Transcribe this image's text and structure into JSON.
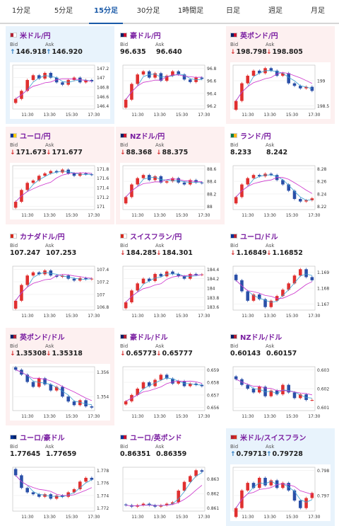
{
  "tabs": [
    "1分足",
    "5分足",
    "15分足",
    "30分足",
    "1時間足",
    "日足",
    "週足",
    "月足"
  ],
  "active_tab": 2,
  "bid_label": "Bid",
  "ask_label": "Ask",
  "x_ticks": [
    "11:30",
    "13:30",
    "15:30",
    "17:30"
  ],
  "colors": {
    "up": "#e03030",
    "down": "#2a4fa8",
    "ma_fast": "#3aa0d0",
    "ma_slow": "#cc33cc",
    "card_down": "#fdf0f0",
    "card_up": "#e8f3fc"
  },
  "cards": [
    {
      "name": "米ドル/円",
      "flag": "us-flag-icon",
      "state": "up",
      "dir": "up",
      "bid": "146.918",
      "ask": "146.920",
      "yticks": [
        "147.2",
        "147",
        "146.8",
        "146.6",
        "146.4"
      ],
      "series": [
        146.55,
        146.72,
        146.95,
        147.05,
        146.98,
        147.1,
        147.0,
        146.9,
        146.85,
        146.95,
        147.0,
        146.9,
        146.95,
        146.92
      ]
    },
    {
      "name": "豪ドル/円",
      "flag": "au-flag-icon",
      "state": "flat",
      "dir": "none",
      "bid": "96.635",
      "ask": "96.640",
      "yticks": [
        "96.8",
        "96.6",
        "96.4",
        "96.2"
      ],
      "series": [
        96.3,
        96.55,
        96.7,
        96.75,
        96.65,
        96.72,
        96.6,
        96.68,
        96.75,
        96.7,
        96.62,
        96.58,
        96.65,
        96.63
      ]
    },
    {
      "name": "英ポンド/円",
      "flag": "gb-flag-icon",
      "state": "down",
      "dir": "dn",
      "bid": "198.798",
      "ask": "198.805",
      "yticks": [
        "199",
        "198.5"
      ],
      "series": [
        198.6,
        198.95,
        199.1,
        199.2,
        199.15,
        199.25,
        199.2,
        199.1,
        199.15,
        198.95,
        198.9,
        198.85,
        198.88,
        198.8
      ]
    },
    {
      "name": "ユーロ/円",
      "flag": "eu-flag-icon",
      "state": "down",
      "dir": "dn",
      "bid": "171.673",
      "ask": "171.677",
      "yticks": [
        "171.8",
        "171.6",
        "171.4",
        "171.2",
        "171"
      ],
      "series": [
        171.1,
        171.35,
        171.5,
        171.55,
        171.65,
        171.7,
        171.75,
        171.72,
        171.78,
        171.7,
        171.65,
        171.7,
        171.68,
        171.67
      ]
    },
    {
      "name": "NZドル/円",
      "flag": "nz-flag-icon",
      "state": "down",
      "dir": "dn",
      "bid": "88.368",
      "ask": "88.375",
      "yticks": [
        "88.6",
        "88.4",
        "88.2",
        "88"
      ],
      "series": [
        88.15,
        88.35,
        88.45,
        88.5,
        88.42,
        88.48,
        88.38,
        88.4,
        88.45,
        88.38,
        88.35,
        88.42,
        88.38,
        88.37
      ]
    },
    {
      "name": "ランド/円",
      "flag": "za-flag-icon",
      "state": "flat",
      "dir": "none",
      "bid": "8.233",
      "ask": "8.242",
      "yticks": [
        "8.28",
        "8.26",
        "8.24",
        "8.22"
      ],
      "series": [
        8.235,
        8.255,
        8.265,
        8.27,
        8.268,
        8.272,
        8.27,
        8.262,
        8.255,
        8.245,
        8.232,
        8.228,
        8.23,
        8.233
      ]
    },
    {
      "name": "カナダドル/円",
      "flag": "ca-flag-icon",
      "state": "flat",
      "dir": "none",
      "bid": "107.247",
      "ask": "107.253",
      "yticks": [
        "107.4",
        "107.2",
        "107",
        "106.8"
      ],
      "series": [
        106.9,
        107.15,
        107.3,
        107.35,
        107.32,
        107.38,
        107.3,
        107.28,
        107.3,
        107.25,
        107.22,
        107.26,
        107.24,
        107.25
      ]
    },
    {
      "name": "スイスフラン/円",
      "flag": "ch-flag-icon",
      "state": "flat",
      "dir": "dn",
      "bid": "184.285",
      "ask": "184.301",
      "yticks": [
        "184.4",
        "184.2",
        "184",
        "183.8",
        "183.6"
      ],
      "series": [
        183.7,
        183.95,
        184.1,
        184.2,
        184.15,
        184.3,
        184.25,
        184.35,
        184.3,
        184.25,
        184.2,
        184.3,
        184.28,
        184.29
      ]
    },
    {
      "name": "ユーロ/ドル",
      "flag": "eu-us-flag-icon",
      "state": "flat",
      "dir": "dn",
      "bid": "1.16849",
      "ask": "1.16852",
      "yticks": [
        "1.169",
        "1.168",
        "1.167"
      ],
      "series": [
        1.1685,
        1.1678,
        1.1672,
        1.1676,
        1.1673,
        1.1668,
        1.1672,
        1.1675,
        1.1679,
        1.1683,
        1.1688,
        1.1692,
        1.1687,
        1.1685
      ]
    },
    {
      "name": "英ポンド/ドル",
      "flag": "gb-us-flag-icon",
      "state": "down",
      "dir": "dn",
      "bid": "1.35308",
      "ask": "1.35318",
      "yticks": [
        "1.356",
        "1.354"
      ],
      "series": [
        1.3562,
        1.3558,
        1.3552,
        1.3548,
        1.3555,
        1.355,
        1.3545,
        1.3548,
        1.354,
        1.3536,
        1.3533,
        1.3537,
        1.3532,
        1.3531
      ]
    },
    {
      "name": "豪ドル/ドル",
      "flag": "au-us-flag-icon",
      "state": "flat",
      "dir": "dn",
      "bid": "0.65773",
      "ask": "0.65777",
      "yticks": [
        "0.659",
        "0.658",
        "0.657",
        "0.656"
      ],
      "series": [
        0.6565,
        0.657,
        0.6575,
        0.658,
        0.6577,
        0.6582,
        0.6586,
        0.6583,
        0.6579,
        0.6581,
        0.6577,
        0.6579,
        0.6578,
        0.6577
      ]
    },
    {
      "name": "NZドル/ドル",
      "flag": "nz-us-flag-icon",
      "state": "flat",
      "dir": "none",
      "bid": "0.60143",
      "ask": "0.60157",
      "yticks": [
        "0.603",
        "0.602",
        "0.601"
      ],
      "series": [
        0.6025,
        0.6022,
        0.602,
        0.6018,
        0.6021,
        0.6016,
        0.6019,
        0.6017,
        0.6022,
        0.6018,
        0.6015,
        0.6017,
        0.6014,
        0.6014
      ]
    },
    {
      "name": "ユーロ/豪ドル",
      "flag": "eu-au-flag-icon",
      "state": "flat",
      "dir": "none",
      "bid": "1.77645",
      "ask": "1.77659",
      "yticks": [
        "1.778",
        "1.776",
        "1.774",
        "1.772"
      ],
      "series": [
        1.7772,
        1.7752,
        1.7745,
        1.7742,
        1.7738,
        1.7742,
        1.7735,
        1.774,
        1.7738,
        1.7745,
        1.775,
        1.7762,
        1.7768,
        1.7765
      ]
    },
    {
      "name": "ユーロ/英ポンド",
      "flag": "eu-gb-flag-icon",
      "state": "flat",
      "dir": "none",
      "bid": "0.86351",
      "ask": "0.86359",
      "yticks": [
        "0.863",
        "0.862",
        "0.861"
      ],
      "series": [
        0.8612,
        0.8611,
        0.8612,
        0.8613,
        0.8612,
        0.8611,
        0.8612,
        0.8613,
        0.8614,
        0.8622,
        0.8628,
        0.8632,
        0.8636,
        0.8635
      ]
    },
    {
      "name": "米ドル/スイスフラン",
      "flag": "us-ch-flag-icon",
      "state": "up",
      "dir": "up",
      "bid": "0.79713",
      "ask": "0.79728",
      "yticks": [
        "0.798",
        "0.797"
      ],
      "series": [
        0.7965,
        0.7972,
        0.7975,
        0.7973,
        0.7977,
        0.7974,
        0.7976,
        0.7973,
        0.7975,
        0.7972,
        0.7968,
        0.7965,
        0.7969,
        0.7971
      ]
    }
  ]
}
